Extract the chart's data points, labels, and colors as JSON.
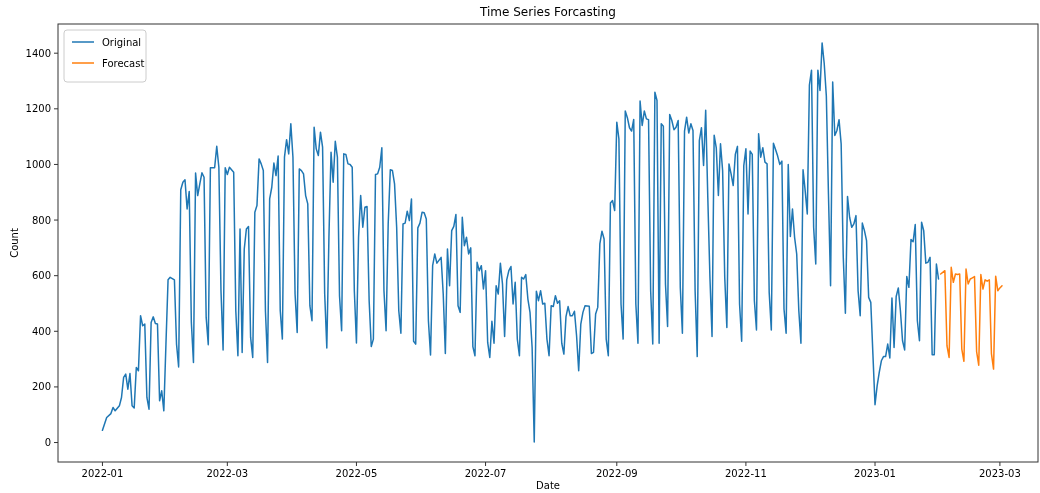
{
  "chart_data": {
    "type": "line",
    "title": "Time Series Forcasting",
    "xlabel": "Date",
    "ylabel": "Count",
    "legend": "top left",
    "grid": false,
    "xlim": [
      "2021-12-11",
      "2023-03-19"
    ],
    "ylim": [
      -70,
      1505
    ],
    "yticks": [
      0,
      200,
      400,
      600,
      800,
      1000,
      1200,
      1400
    ],
    "xticks": [
      {
        "value": "2022-01-01",
        "label": "2022-01"
      },
      {
        "value": "2022-03-01",
        "label": "2022-03"
      },
      {
        "value": "2022-05-01",
        "label": "2022-05"
      },
      {
        "value": "2022-07-01",
        "label": "2022-07"
      },
      {
        "value": "2022-09-01",
        "label": "2022-09"
      },
      {
        "value": "2022-11-01",
        "label": "2022-11"
      },
      {
        "value": "2023-01-01",
        "label": "2023-01"
      },
      {
        "value": "2023-03-01",
        "label": "2023-03"
      }
    ],
    "series": [
      {
        "name": "Original",
        "color": "#1f77b4",
        "x": [
          "2022-01-01",
          "2022-01-03",
          "2022-01-05",
          "2022-01-06",
          "2022-01-07",
          "2022-01-09",
          "2022-01-10",
          "2022-01-11",
          "2022-01-12",
          "2022-01-13",
          "2022-01-14",
          "2022-01-15",
          "2022-01-16",
          "2022-01-17",
          "2022-01-18",
          "2022-01-19",
          "2022-01-20",
          "2022-01-21",
          "2022-01-22",
          "2022-01-23",
          "2022-01-24",
          "2022-01-25",
          "2022-01-26",
          "2022-01-27",
          "2022-01-28",
          "2022-01-29",
          "2022-01-30",
          "2022-01-31",
          "2022-02-01",
          "2022-02-02",
          "2022-02-04",
          "2022-02-05",
          "2022-02-06",
          "2022-02-07",
          "2022-02-08",
          "2022-02-09",
          "2022-02-10",
          "2022-02-11",
          "2022-02-12",
          "2022-02-13",
          "2022-02-14",
          "2022-02-15",
          "2022-02-16",
          "2022-02-17",
          "2022-02-18",
          "2022-02-19",
          "2022-02-20",
          "2022-02-21",
          "2022-02-23",
          "2022-02-24",
          "2022-02-25",
          "2022-02-26",
          "2022-02-27",
          "2022-02-28",
          "2022-03-01",
          "2022-03-02",
          "2022-03-04",
          "2022-03-05",
          "2022-03-06",
          "2022-03-07",
          "2022-03-08",
          "2022-03-09",
          "2022-03-10",
          "2022-03-11",
          "2022-03-12",
          "2022-03-13",
          "2022-03-14",
          "2022-03-15",
          "2022-03-16",
          "2022-03-17",
          "2022-03-18",
          "2022-03-19",
          "2022-03-20",
          "2022-03-21",
          "2022-03-22",
          "2022-03-23",
          "2022-03-24",
          "2022-03-25",
          "2022-03-26",
          "2022-03-27",
          "2022-03-28",
          "2022-03-29",
          "2022-03-30",
          "2022-03-31",
          "2022-04-01",
          "2022-04-02",
          "2022-04-03",
          "2022-04-04",
          "2022-04-05",
          "2022-04-06",
          "2022-04-07",
          "2022-04-08",
          "2022-04-09",
          "2022-04-10",
          "2022-04-11",
          "2022-04-12",
          "2022-04-13",
          "2022-04-14",
          "2022-04-15",
          "2022-04-16",
          "2022-04-17",
          "2022-04-18",
          "2022-04-19",
          "2022-04-20",
          "2022-04-21",
          "2022-04-22",
          "2022-04-23",
          "2022-04-24",
          "2022-04-25",
          "2022-04-26",
          "2022-04-27",
          "2022-04-28",
          "2022-04-29",
          "2022-04-30",
          "2022-05-01",
          "2022-05-02",
          "2022-05-03",
          "2022-05-04",
          "2022-05-05",
          "2022-05-06",
          "2022-05-07",
          "2022-05-08",
          "2022-05-09",
          "2022-05-10",
          "2022-05-11",
          "2022-05-12",
          "2022-05-13",
          "2022-05-14",
          "2022-05-15",
          "2022-05-16",
          "2022-05-17",
          "2022-05-18",
          "2022-05-19",
          "2022-05-20",
          "2022-05-21",
          "2022-05-22",
          "2022-05-23",
          "2022-05-24",
          "2022-05-25",
          "2022-05-26",
          "2022-05-27",
          "2022-05-28",
          "2022-05-29",
          "2022-05-30",
          "2022-05-31",
          "2022-06-01",
          "2022-06-02",
          "2022-06-03",
          "2022-06-04",
          "2022-06-05",
          "2022-06-06",
          "2022-06-07",
          "2022-06-08",
          "2022-06-10",
          "2022-06-11",
          "2022-06-12",
          "2022-06-13",
          "2022-06-14",
          "2022-06-15",
          "2022-06-16",
          "2022-06-17",
          "2022-06-18",
          "2022-06-19",
          "2022-06-20",
          "2022-06-21",
          "2022-06-22",
          "2022-06-23",
          "2022-06-24",
          "2022-06-25",
          "2022-06-26",
          "2022-06-27",
          "2022-06-28",
          "2022-06-29",
          "2022-06-30",
          "2022-07-01",
          "2022-07-02",
          "2022-07-03",
          "2022-07-04",
          "2022-07-05",
          "2022-07-06",
          "2022-07-07",
          "2022-07-08",
          "2022-07-09",
          "2022-07-10",
          "2022-07-11",
          "2022-07-12",
          "2022-07-13",
          "2022-07-14",
          "2022-07-15",
          "2022-07-16",
          "2022-07-17",
          "2022-07-18",
          "2022-07-19",
          "2022-07-20",
          "2022-07-21",
          "2022-07-22",
          "2022-07-23",
          "2022-07-24",
          "2022-07-25",
          "2022-07-26",
          "2022-07-27",
          "2022-07-28",
          "2022-07-29",
          "2022-07-30",
          "2022-07-31",
          "2022-08-01",
          "2022-08-02",
          "2022-08-03",
          "2022-08-04",
          "2022-08-05",
          "2022-08-06",
          "2022-08-07",
          "2022-08-08",
          "2022-08-09",
          "2022-08-10",
          "2022-08-11",
          "2022-08-12",
          "2022-08-13",
          "2022-08-14",
          "2022-08-15",
          "2022-08-16",
          "2022-08-17",
          "2022-08-19",
          "2022-08-20",
          "2022-08-21",
          "2022-08-22",
          "2022-08-23",
          "2022-08-24",
          "2022-08-25",
          "2022-08-26",
          "2022-08-27",
          "2022-08-28",
          "2022-08-29",
          "2022-08-30",
          "2022-08-31",
          "2022-09-01",
          "2022-09-02",
          "2022-09-03",
          "2022-09-04",
          "2022-09-05",
          "2022-09-06",
          "2022-09-07",
          "2022-09-08",
          "2022-09-09",
          "2022-09-10",
          "2022-09-11",
          "2022-09-12",
          "2022-09-13",
          "2022-09-14",
          "2022-09-15",
          "2022-09-16",
          "2022-09-17",
          "2022-09-18",
          "2022-09-19",
          "2022-09-20",
          "2022-09-21",
          "2022-09-22",
          "2022-09-23",
          "2022-09-24",
          "2022-09-25",
          "2022-09-26",
          "2022-09-27",
          "2022-09-28",
          "2022-09-29",
          "2022-09-30",
          "2022-10-01",
          "2022-10-02",
          "2022-10-03",
          "2022-10-04",
          "2022-10-05",
          "2022-10-06",
          "2022-10-07",
          "2022-10-08",
          "2022-10-09",
          "2022-10-10",
          "2022-10-11",
          "2022-10-12",
          "2022-10-13",
          "2022-10-14",
          "2022-10-15",
          "2022-10-16",
          "2022-10-17",
          "2022-10-18",
          "2022-10-19",
          "2022-10-20",
          "2022-10-21",
          "2022-10-22",
          "2022-10-23",
          "2022-10-24",
          "2022-10-25",
          "2022-10-26",
          "2022-10-27",
          "2022-10-28",
          "2022-10-29",
          "2022-10-30",
          "2022-10-31",
          "2022-11-01",
          "2022-11-02",
          "2022-11-03",
          "2022-11-04",
          "2022-11-05",
          "2022-11-06",
          "2022-11-07",
          "2022-11-08",
          "2022-11-09",
          "2022-11-10",
          "2022-11-11",
          "2022-11-12",
          "2022-11-13",
          "2022-11-14",
          "2022-11-15",
          "2022-11-16",
          "2022-11-17",
          "2022-11-18",
          "2022-11-19",
          "2022-11-20",
          "2022-11-21",
          "2022-11-22",
          "2022-11-23",
          "2022-11-24",
          "2022-11-25",
          "2022-11-26",
          "2022-11-27",
          "2022-11-28",
          "2022-11-29",
          "2022-11-30",
          "2022-12-01",
          "2022-12-02",
          "2022-12-03",
          "2022-12-04",
          "2022-12-05",
          "2022-12-06",
          "2022-12-07",
          "2022-12-08",
          "2022-12-09",
          "2022-12-10",
          "2022-12-11",
          "2022-12-12",
          "2022-12-13",
          "2022-12-14",
          "2022-12-15",
          "2022-12-16",
          "2022-12-17",
          "2022-12-18",
          "2022-12-19",
          "2022-12-20",
          "2022-12-21",
          "2022-12-22",
          "2022-12-23",
          "2022-12-24",
          "2022-12-25",
          "2022-12-26",
          "2022-12-27",
          "2022-12-28",
          "2022-12-29",
          "2022-12-30",
          "2022-12-31",
          "2023-01-01",
          "2023-01-02",
          "2023-01-03",
          "2023-01-04",
          "2023-01-05",
          "2023-01-06",
          "2023-01-07",
          "2023-01-08",
          "2023-01-09",
          "2023-01-10",
          "2023-01-11",
          "2023-01-12",
          "2023-01-13",
          "2023-01-14",
          "2023-01-15",
          "2023-01-16",
          "2023-01-17",
          "2023-01-18",
          "2023-01-19",
          "2023-01-20",
          "2023-01-21",
          "2023-01-22",
          "2023-01-23",
          "2023-01-24",
          "2023-01-25",
          "2023-01-26",
          "2023-01-27",
          "2023-01-28",
          "2023-01-29",
          "2023-01-30",
          "2023-01-31"
        ],
        "values": [
          44,
          90,
          104,
          126,
          114,
          132,
          162,
          234,
          246,
          192,
          248,
          132,
          124,
          270,
          258,
          456,
          420,
          426,
          162,
          120,
          432,
          452,
          428,
          426,
          150,
          186,
          114,
          354,
          585,
          594,
          585,
          354,
          272,
          909,
          936,
          945,
          840,
          903,
          432,
          288,
          969,
          888,
          930,
          970,
          954,
          450,
          352,
          988,
          988,
          1065,
          990,
          546,
          333,
          988,
          964,
          990,
          972,
          474,
          312,
          768,
          324,
          696,
          768,
          777,
          378,
          306,
          828,
          852,
          1020,
          1002,
          978,
          474,
          288,
          876,
          918,
          1005,
          960,
          1030,
          474,
          372,
          1026,
          1089,
          1038,
          1146,
          1026,
          534,
          396,
          984,
          978,
          966,
          888,
          858,
          492,
          438,
          1134,
          1056,
          1032,
          1116,
          1062,
          534,
          340,
          738,
          1044,
          936,
          1083,
          1026,
          528,
          402,
          1038,
          1036,
          1002,
          1000,
          990,
          546,
          358,
          738,
          888,
          774,
          846,
          849,
          510,
          345,
          372,
          964,
          966,
          990,
          1060,
          546,
          402,
          786,
          981,
          978,
          930,
          774,
          474,
          393,
          786,
          789,
          832,
          798,
          876,
          364,
          354,
          772,
          789,
          828,
          826,
          804,
          438,
          315,
          636,
          678,
          645,
          666,
          534,
          320,
          696,
          564,
          762,
          777,
          820,
          492,
          468,
          810,
          708,
          738,
          678,
          700,
          345,
          312,
          648,
          618,
          636,
          552,
          618,
          360,
          306,
          436,
          357,
          564,
          534,
          645,
          570,
          381,
          585,
          618,
          633,
          498,
          576,
          372,
          312,
          594,
          588,
          604,
          516,
          468,
          342,
          2,
          544,
          510,
          546,
          498,
          501,
          372,
          312,
          492,
          489,
          528,
          501,
          510,
          357,
          318,
          453,
          489,
          456,
          456,
          472,
          384,
          258,
          426,
          468,
          492,
          490,
          320,
          324,
          462,
          486,
          714,
          760,
          732,
          372,
          312,
          861,
          870,
          834,
          1152,
          1092,
          498,
          372,
          1192,
          1168,
          1132,
          1120,
          1162,
          498,
          357,
          1228,
          1140,
          1192,
          1164,
          1161,
          546,
          354,
          1260,
          1230,
          357,
          1146,
          1137,
          570,
          417,
          1180,
          1158,
          1125,
          1134,
          1158,
          558,
          393,
          1120,
          1170,
          1113,
          1146,
          1122,
          546,
          309,
          1086,
          1132,
          996,
          1195,
          880,
          594,
          381,
          1105,
          1060,
          888,
          1074,
          978,
          594,
          414,
          1002,
          966,
          924,
          1036,
          1065,
          498,
          364,
          996,
          1056,
          822,
          1048,
          1036,
          510,
          405,
          1110,
          1026,
          1060,
          1008,
          1002,
          540,
          405,
          1076,
          1054,
          1030,
          1000,
          1012,
          480,
          393,
          1000,
          741,
          840,
          738,
          678,
          474,
          357,
          981,
          906,
          822,
          1285,
          1339,
          774,
          642,
          1339,
          1266,
          1437,
          1363,
          1246,
          894,
          564,
          1296,
          1104,
          1122,
          1161,
          1074,
          666,
          465,
          885,
          810,
          774,
          786,
          816,
          546,
          456,
          789,
          762,
          726,
          522,
          504,
          318,
          136,
          204,
          252,
          294,
          309,
          309,
          354,
          304,
          520,
          342,
          525,
          556,
          474,
          366,
          333,
          597,
          558,
          730,
          722,
          784,
          438,
          366,
          792,
          762,
          645,
          648,
          666,
          316,
          316,
          642,
          588
        ]
      },
      {
        "name": "Forecast",
        "color": "#ff7f0e",
        "x": [
          "2023-02-01",
          "2023-02-02",
          "2023-02-03",
          "2023-02-04",
          "2023-02-05",
          "2023-02-06",
          "2023-02-07",
          "2023-02-08",
          "2023-02-09",
          "2023-02-10",
          "2023-02-11",
          "2023-02-12",
          "2023-02-13",
          "2023-02-14",
          "2023-02-15",
          "2023-02-16",
          "2023-02-17",
          "2023-02-18",
          "2023-02-19",
          "2023-02-20",
          "2023-02-21",
          "2023-02-22",
          "2023-02-23",
          "2023-02-24",
          "2023-02-25",
          "2023-02-26",
          "2023-02-27",
          "2023-02-28",
          "2023-03-01",
          "2023-03-02"
        ],
        "values": [
          606,
          612,
          618,
          348,
          306,
          630,
          576,
          606,
          604,
          606,
          336,
          292,
          624,
          570,
          588,
          592,
          597,
          327,
          278,
          604,
          552,
          585,
          580,
          585,
          320,
          264,
          598,
          546,
          556,
          564
        ]
      }
    ]
  }
}
